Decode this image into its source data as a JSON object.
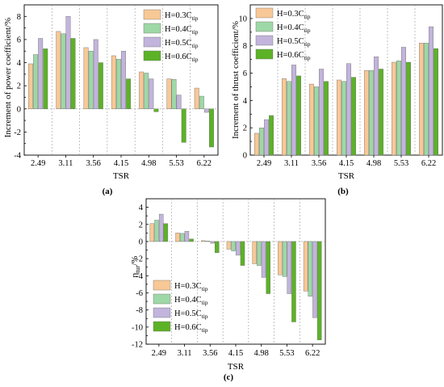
{
  "colors": {
    "s1": "#f8c896",
    "s2": "#9ed8a6",
    "s3": "#c2b4dc",
    "s4": "#5cb226"
  },
  "legend_entries": [
    {
      "base": "H=0.3C",
      "sub": "tip"
    },
    {
      "base": "H=0.4C",
      "sub": "tip"
    },
    {
      "base": "H=0.5C",
      "sub": "tip"
    },
    {
      "base": "H=0.6C",
      "sub": "tip"
    }
  ],
  "chart_data": [
    {
      "type": "bar",
      "panel_label": "(a)",
      "xlabel": "TSR",
      "ylabel": "Increment of power coefficient/%",
      "categories": [
        "2.49",
        "3.11",
        "3.56",
        "4.15",
        "4.98",
        "5.53",
        "6.22"
      ],
      "ylim": [
        -4,
        9
      ],
      "yticks": [
        -4,
        -2,
        0,
        2,
        4,
        6,
        8
      ],
      "grid": false,
      "legend_position": "top-right",
      "series": [
        {
          "name": "H=0.3Ctip",
          "values": [
            3.9,
            6.7,
            5.3,
            4.6,
            3.2,
            2.6,
            1.8
          ]
        },
        {
          "name": "H=0.4Ctip",
          "values": [
            4.7,
            6.5,
            5.0,
            4.3,
            3.1,
            2.55,
            1.1
          ]
        },
        {
          "name": "H=0.5Ctip",
          "values": [
            6.1,
            8.0,
            6.0,
            5.0,
            2.6,
            1.2,
            -0.3
          ]
        },
        {
          "name": "H=0.6Ctip",
          "values": [
            5.2,
            6.1,
            4.0,
            2.6,
            -0.25,
            -2.9,
            -3.3
          ]
        }
      ]
    },
    {
      "type": "bar",
      "panel_label": "(b)",
      "xlabel": "TSR",
      "ylabel": "Increment of thrust coefficient/%",
      "categories": [
        "2.49",
        "3.11",
        "3.56",
        "4.15",
        "4.98",
        "5.53",
        "6.22"
      ],
      "ylim": [
        0,
        11
      ],
      "yticks": [
        0,
        2,
        4,
        6,
        8,
        10
      ],
      "grid": false,
      "legend_position": "top-left",
      "series": [
        {
          "name": "H=0.3Ctip",
          "values": [
            1.6,
            5.6,
            5.2,
            5.5,
            6.2,
            6.8,
            8.2
          ]
        },
        {
          "name": "H=0.4Ctip",
          "values": [
            2.0,
            5.4,
            5.0,
            5.4,
            6.2,
            6.9,
            8.2
          ]
        },
        {
          "name": "H=0.5Ctip",
          "values": [
            2.6,
            6.6,
            6.3,
            6.7,
            7.2,
            7.9,
            9.4
          ]
        },
        {
          "name": "H=0.6Ctip",
          "values": [
            2.9,
            5.8,
            5.4,
            5.7,
            6.3,
            6.8,
            7.8
          ]
        }
      ]
    },
    {
      "type": "bar",
      "panel_label": "(c)",
      "xlabel": "TSR",
      "ylabel": "ηtur/%",
      "categories": [
        "2.49",
        "3.11",
        "3.56",
        "4.15",
        "4.98",
        "5.53",
        "6.22"
      ],
      "ylim": [
        -12,
        5
      ],
      "yticks": [
        -12,
        -10,
        -8,
        -6,
        -4,
        -2,
        0,
        2,
        4
      ],
      "grid": false,
      "legend_position": "bottom-left",
      "series": [
        {
          "name": "H=0.3Ctip",
          "values": [
            2.1,
            1.0,
            0.1,
            -0.9,
            -2.6,
            -3.9,
            -5.8
          ]
        },
        {
          "name": "H=0.4Ctip",
          "values": [
            2.5,
            0.95,
            0.05,
            -1.1,
            -2.8,
            -4.1,
            -6.4
          ]
        },
        {
          "name": "H=0.5Ctip",
          "values": [
            3.2,
            1.2,
            -0.2,
            -1.6,
            -4.2,
            -6.1,
            -8.9
          ]
        },
        {
          "name": "H=0.6Ctip",
          "values": [
            2.1,
            0.3,
            -1.3,
            -2.8,
            -6.1,
            -9.4,
            -11.5
          ]
        }
      ]
    }
  ]
}
